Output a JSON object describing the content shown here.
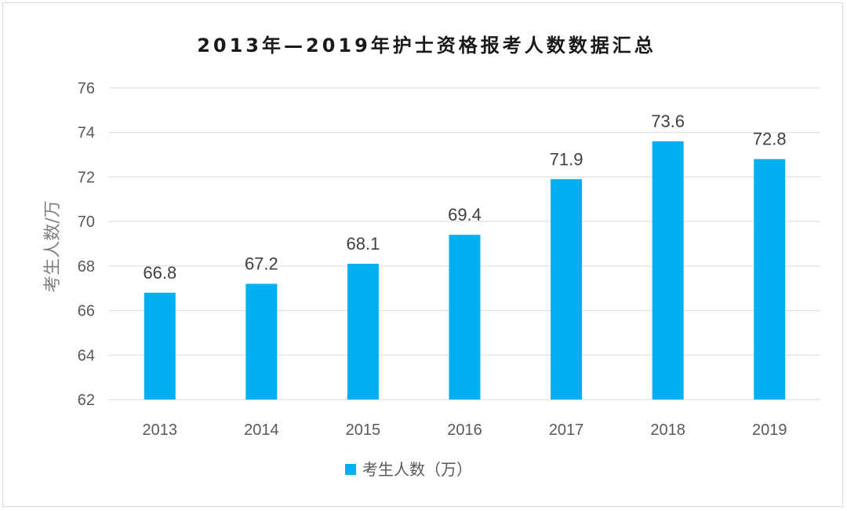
{
  "chart_data": {
    "type": "bar",
    "title": "2013年—2019年护士资格报考人数数据汇总",
    "ylabel": "考生人数/万",
    "xlabel": "",
    "categories": [
      "2013",
      "2014",
      "2015",
      "2016",
      "2017",
      "2018",
      "2019"
    ],
    "series": [
      {
        "name": "考生人数（万）",
        "values": [
          66.8,
          67.2,
          68.1,
          69.4,
          71.9,
          73.6,
          72.8
        ]
      }
    ],
    "ylim": [
      62,
      76
    ],
    "yticks": [
      62,
      64,
      66,
      68,
      70,
      72,
      74,
      76
    ],
    "grid": true,
    "legend_position": "bottom",
    "bar_color": "#00B0F0"
  }
}
